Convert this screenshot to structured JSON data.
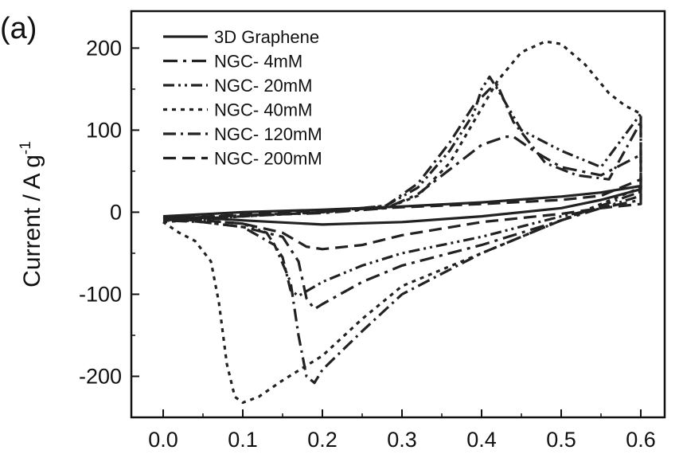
{
  "panel_label": "(a)",
  "chart_data": {
    "type": "line",
    "title": "",
    "xlabel": "",
    "ylabel": "Current / A g",
    "ylabel_superscript": "-1",
    "xlim": [
      -0.04,
      0.63
    ],
    "ylim": [
      -250,
      245
    ],
    "xticks": [
      0.0,
      0.1,
      0.2,
      0.3,
      0.4,
      0.5,
      0.6
    ],
    "xtick_labels": [
      "0.0",
      "0.1",
      "0.2",
      "0.3",
      "0.4",
      "0.5",
      "0.6"
    ],
    "yticks": [
      -200,
      -100,
      0,
      100,
      200
    ],
    "ytick_labels": [
      "-200",
      "-100",
      "0",
      "100",
      "200"
    ],
    "grid": false,
    "legend_position": "top-left",
    "series": [
      {
        "name": "3D Graphene",
        "dash": "solid",
        "points": [
          [
            0.0,
            -5
          ],
          [
            0.1,
            0
          ],
          [
            0.2,
            3
          ],
          [
            0.3,
            7
          ],
          [
            0.4,
            12
          ],
          [
            0.5,
            19
          ],
          [
            0.55,
            24
          ],
          [
            0.6,
            32
          ],
          [
            0.6,
            28
          ],
          [
            0.55,
            15
          ],
          [
            0.5,
            5
          ],
          [
            0.4,
            -5
          ],
          [
            0.3,
            -12
          ],
          [
            0.2,
            -15
          ],
          [
            0.1,
            -10
          ],
          [
            0.05,
            -7
          ],
          [
            0.0,
            -5
          ]
        ]
      },
      {
        "name": "NGC- 4mM",
        "dash": "dashdot",
        "points": [
          [
            0.0,
            -8
          ],
          [
            0.1,
            -4
          ],
          [
            0.2,
            -1
          ],
          [
            0.28,
            5
          ],
          [
            0.32,
            22
          ],
          [
            0.36,
            52
          ],
          [
            0.4,
            82
          ],
          [
            0.43,
            92
          ],
          [
            0.44,
            92
          ],
          [
            0.47,
            72
          ],
          [
            0.5,
            55
          ],
          [
            0.55,
            45
          ],
          [
            0.6,
            70
          ],
          [
            0.6,
            15
          ],
          [
            0.55,
            5
          ],
          [
            0.5,
            -10
          ],
          [
            0.4,
            -40
          ],
          [
            0.3,
            -65
          ],
          [
            0.25,
            -85
          ],
          [
            0.2,
            -112
          ],
          [
            0.19,
            -118
          ],
          [
            0.18,
            -105
          ],
          [
            0.17,
            -60
          ],
          [
            0.15,
            -30
          ],
          [
            0.1,
            -18
          ],
          [
            0.05,
            -12
          ],
          [
            0.0,
            -8
          ]
        ]
      },
      {
        "name": "NGC- 20mM",
        "dash": "dashdotdot",
        "points": [
          [
            0.0,
            -8
          ],
          [
            0.1,
            -4
          ],
          [
            0.2,
            0
          ],
          [
            0.28,
            8
          ],
          [
            0.32,
            30
          ],
          [
            0.36,
            75
          ],
          [
            0.39,
            120
          ],
          [
            0.4,
            150
          ],
          [
            0.41,
            165
          ],
          [
            0.42,
            150
          ],
          [
            0.45,
            100
          ],
          [
            0.5,
            75
          ],
          [
            0.55,
            55
          ],
          [
            0.6,
            120
          ],
          [
            0.6,
            20
          ],
          [
            0.55,
            5
          ],
          [
            0.5,
            -5
          ],
          [
            0.4,
            -30
          ],
          [
            0.3,
            -50
          ],
          [
            0.25,
            -65
          ],
          [
            0.2,
            -85
          ],
          [
            0.17,
            -102
          ],
          [
            0.16,
            -95
          ],
          [
            0.15,
            -55
          ],
          [
            0.13,
            -25
          ],
          [
            0.1,
            -14
          ],
          [
            0.05,
            -10
          ],
          [
            0.0,
            -8
          ]
        ]
      },
      {
        "name": "NGC- 40mM",
        "dash": "dotted",
        "points": [
          [
            0.0,
            -12
          ],
          [
            0.1,
            -5
          ],
          [
            0.2,
            0
          ],
          [
            0.28,
            5
          ],
          [
            0.32,
            20
          ],
          [
            0.36,
            60
          ],
          [
            0.39,
            110
          ],
          [
            0.42,
            160
          ],
          [
            0.45,
            195
          ],
          [
            0.48,
            208
          ],
          [
            0.5,
            205
          ],
          [
            0.53,
            180
          ],
          [
            0.56,
            145
          ],
          [
            0.58,
            130
          ],
          [
            0.6,
            120
          ],
          [
            0.6,
            30
          ],
          [
            0.55,
            10
          ],
          [
            0.5,
            -10
          ],
          [
            0.4,
            -50
          ],
          [
            0.3,
            -90
          ],
          [
            0.25,
            -130
          ],
          [
            0.2,
            -175
          ],
          [
            0.15,
            -205
          ],
          [
            0.12,
            -225
          ],
          [
            0.1,
            -232
          ],
          [
            0.09,
            -225
          ],
          [
            0.08,
            -185
          ],
          [
            0.07,
            -110
          ],
          [
            0.06,
            -60
          ],
          [
            0.04,
            -35
          ],
          [
            0.02,
            -25
          ],
          [
            0.0,
            -12
          ]
        ]
      },
      {
        "name": "NGC- 120mM",
        "dash": "dashdot2",
        "points": [
          [
            0.0,
            -10
          ],
          [
            0.1,
            -5
          ],
          [
            0.2,
            0
          ],
          [
            0.28,
            8
          ],
          [
            0.32,
            35
          ],
          [
            0.36,
            85
          ],
          [
            0.39,
            130
          ],
          [
            0.41,
            150
          ],
          [
            0.42,
            155
          ],
          [
            0.44,
            110
          ],
          [
            0.48,
            60
          ],
          [
            0.52,
            45
          ],
          [
            0.56,
            40
          ],
          [
            0.6,
            110
          ],
          [
            0.6,
            25
          ],
          [
            0.55,
            8
          ],
          [
            0.5,
            -10
          ],
          [
            0.4,
            -50
          ],
          [
            0.3,
            -100
          ],
          [
            0.25,
            -145
          ],
          [
            0.2,
            -192
          ],
          [
            0.19,
            -208
          ],
          [
            0.18,
            -200
          ],
          [
            0.17,
            -150
          ],
          [
            0.16,
            -85
          ],
          [
            0.14,
            -40
          ],
          [
            0.1,
            -18
          ],
          [
            0.05,
            -12
          ],
          [
            0.0,
            -10
          ]
        ]
      },
      {
        "name": "NGC- 200mM",
        "dash": "dashed",
        "points": [
          [
            0.0,
            -8
          ],
          [
            0.1,
            -3
          ],
          [
            0.2,
            2
          ],
          [
            0.3,
            6
          ],
          [
            0.4,
            10
          ],
          [
            0.5,
            15
          ],
          [
            0.55,
            20
          ],
          [
            0.6,
            40
          ],
          [
            0.6,
            10
          ],
          [
            0.55,
            5
          ],
          [
            0.5,
            -2
          ],
          [
            0.4,
            -12
          ],
          [
            0.3,
            -28
          ],
          [
            0.25,
            -40
          ],
          [
            0.2,
            -45
          ],
          [
            0.18,
            -42
          ],
          [
            0.15,
            -25
          ],
          [
            0.1,
            -14
          ],
          [
            0.05,
            -10
          ],
          [
            0.0,
            -8
          ]
        ]
      }
    ]
  }
}
